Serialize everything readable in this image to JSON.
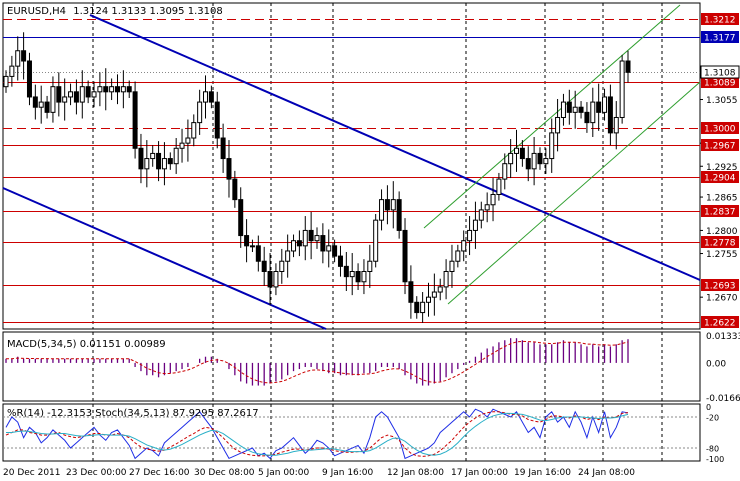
{
  "main": {
    "symbol": "EURUSD,H4",
    "ohlc": "1.3124 1.3133 1.3095 1.3108",
    "colors": {
      "resistance": "#cc0000",
      "channel_blue": "#0000b4",
      "channel_green": "#2e9e2e",
      "candle": "#000000",
      "grid": "#000000"
    }
  },
  "macd": {
    "label": "MACD(5,34,5) 0.01151 0.00989"
  },
  "osc": {
    "label": "%R(14) -12.3153  Stoch(34,5,13) 87.9295 87.2617"
  },
  "chart_data": [
    {
      "type": "candlestick",
      "title": "EURUSD,H4 1.3124 1.3133 1.3095 1.3108",
      "x_ticks": [
        "20 Dec 2011",
        "23 Dec 00:00",
        "27 Dec 16:00",
        "30 Dec 08:00",
        "5 Jan 00:00",
        "9 Jan 16:00",
        "12 Jan 08:00",
        "17 Jan 00:00",
        "19 Jan 16:00",
        "24 Jan 08:00"
      ],
      "y_ticks": [
        "1.3055",
        "1.2970",
        "1.2925",
        "1.2865",
        "1.2800",
        "1.2755",
        "1.2670"
      ],
      "ylim": [
        1.2608,
        1.3243
      ],
      "hlines": [
        {
          "label": "1.3212",
          "value": 1.3212,
          "color": "#cc0000",
          "style": "dashed"
        },
        {
          "label": "1.3177",
          "value": 1.3177,
          "color": "#0000b4",
          "style": "solid"
        },
        {
          "label": "1.3089",
          "value": 1.3089,
          "color": "#cc0000",
          "style": "solid"
        },
        {
          "label": "1.3000",
          "value": 1.3,
          "color": "#cc0000",
          "style": "dashed"
        },
        {
          "label": "1.2967",
          "value": 1.2967,
          "color": "#cc0000",
          "style": "solid"
        },
        {
          "label": "1.2904",
          "value": 1.2904,
          "color": "#cc0000",
          "style": "solid"
        },
        {
          "label": "1.2837",
          "value": 1.2837,
          "color": "#cc0000",
          "style": "solid"
        },
        {
          "label": "1.2778",
          "value": 1.2778,
          "color": "#cc0000",
          "style": "solid"
        },
        {
          "label": "1.2693",
          "value": 1.2693,
          "color": "#cc0000",
          "style": "solid"
        },
        {
          "label": "1.2622",
          "value": 1.2622,
          "color": "#cc0000",
          "style": "solid"
        }
      ],
      "current_price": {
        "label": "1.3108",
        "value": 1.3108
      },
      "closes": [
        1.31,
        1.312,
        1.315,
        1.313,
        1.306,
        1.304,
        1.305,
        1.303,
        1.308,
        1.305,
        1.306,
        1.307,
        1.305,
        1.308,
        1.306,
        1.307,
        1.308,
        1.307,
        1.308,
        1.307,
        1.308,
        1.307,
        1.296,
        1.292,
        1.294,
        1.295,
        1.292,
        1.294,
        1.293,
        1.296,
        1.297,
        1.298,
        1.301,
        1.305,
        1.307,
        1.305,
        1.298,
        1.294,
        1.29,
        1.286,
        1.279,
        1.277,
        1.277,
        1.274,
        1.272,
        1.269,
        1.272,
        1.274,
        1.276,
        1.278,
        1.277,
        1.28,
        1.278,
        1.279,
        1.276,
        1.277,
        1.275,
        1.273,
        1.271,
        1.272,
        1.27,
        1.272,
        1.274,
        1.282,
        1.286,
        1.284,
        1.286,
        1.28,
        1.27,
        1.266,
        1.264,
        1.266,
        1.267,
        1.268,
        1.269,
        1.272,
        1.274,
        1.276,
        1.278,
        1.28,
        1.282,
        1.284,
        1.285,
        1.287,
        1.29,
        1.293,
        1.295,
        1.296,
        1.294,
        1.292,
        1.295,
        1.293,
        1.294,
        1.299,
        1.302,
        1.305,
        1.303,
        1.304,
        1.303,
        1.301,
        1.305,
        1.303,
        1.306,
        1.299,
        1.302,
        1.313,
        1.3108
      ]
    },
    {
      "type": "bar",
      "title": "MACD(5,34,5) 0.01151 0.00989",
      "y_ticks": [
        "0.01333",
        "0.00",
        "-0.01669"
      ],
      "ylim": [
        -0.0185,
        0.015
      ],
      "series": [
        {
          "name": "MACD",
          "kind": "histogram",
          "values": [
            0.002,
            0.002,
            0.003,
            0.002,
            0.002,
            0.002,
            0.002,
            0.002,
            0.002,
            0.002,
            0.002,
            0.002,
            0.002,
            0.002,
            0.002,
            0.002,
            0.002,
            0.002,
            0.002,
            0.002,
            0.002,
            0.002,
            -0.002,
            -0.004,
            -0.006,
            -0.006,
            -0.007,
            -0.006,
            -0.005,
            -0.004,
            -0.003,
            -0.002,
            0.0,
            0.002,
            0.003,
            0.003,
            0.002,
            0.0,
            -0.003,
            -0.006,
            -0.009,
            -0.01,
            -0.011,
            -0.011,
            -0.011,
            -0.01,
            -0.009,
            -0.008,
            -0.006,
            -0.004,
            -0.003,
            -0.002,
            -0.002,
            -0.003,
            -0.004,
            -0.005,
            -0.005,
            -0.006,
            -0.006,
            -0.006,
            -0.006,
            -0.005,
            -0.005,
            -0.004,
            -0.002,
            -0.002,
            -0.002,
            -0.003,
            -0.006,
            -0.008,
            -0.01,
            -0.011,
            -0.011,
            -0.01,
            -0.009,
            -0.007,
            -0.005,
            -0.003,
            -0.001,
            0.001,
            0.003,
            0.005,
            0.007,
            0.008,
            0.01,
            0.011,
            0.012,
            0.012,
            0.011,
            0.01,
            0.01,
            0.009,
            0.009,
            0.009,
            0.01,
            0.011,
            0.01,
            0.01,
            0.009,
            0.008,
            0.009,
            0.008,
            0.009,
            0.008,
            0.009,
            0.011,
            0.0115
          ]
        },
        {
          "name": "Signal",
          "kind": "dashed-line"
        }
      ]
    },
    {
      "type": "line",
      "title": "%R(14) -12.3153  Stoch(34,5,13) 87.9295 87.2617",
      "y_ticks": [
        "0",
        "-20",
        "-80",
        "-100"
      ],
      "ylim": [
        -105,
        5
      ],
      "series": [
        {
          "name": "%R(14)",
          "values": [
            -40,
            -20,
            -30,
            -60,
            -40,
            -50,
            -70,
            -60,
            -45,
            -55,
            -65,
            -80,
            -70,
            -60,
            -50,
            -40,
            -55,
            -65,
            -50,
            -45,
            -60,
            -75,
            -100,
            -90,
            -80,
            -85,
            -95,
            -70,
            -60,
            -50,
            -40,
            -30,
            -20,
            -10,
            -25,
            -40,
            -60,
            -80,
            -100,
            -95,
            -90,
            -85,
            -80,
            -95,
            -90,
            -100,
            -85,
            -80,
            -70,
            -60,
            -75,
            -90,
            -80,
            -65,
            -70,
            -80,
            -95,
            -90,
            -85,
            -80,
            -75,
            -90,
            -60,
            -20,
            -10,
            -20,
            -40,
            -60,
            -100,
            -95,
            -90,
            -85,
            -80,
            -70,
            -50,
            -40,
            -30,
            -20,
            -10,
            -20,
            -5,
            -10,
            -20,
            -5,
            -10,
            -15,
            -20,
            -10,
            -30,
            -50,
            -40,
            -60,
            -20,
            -10,
            -30,
            -20,
            -40,
            -10,
            -30,
            -60,
            -20,
            -50,
            -10,
            -60,
            -40,
            -10,
            -12
          ]
        },
        {
          "name": "Stoch(34,5,13) main",
          "kind": "dashed",
          "values": [
            -55,
            -50,
            -45,
            -45,
            -50,
            -52,
            -55,
            -55,
            -52,
            -50,
            -55,
            -58,
            -60,
            -58,
            -55,
            -52,
            -52,
            -55,
            -55,
            -52,
            -55,
            -60,
            -70,
            -78,
            -82,
            -84,
            -86,
            -84,
            -78,
            -72,
            -65,
            -58,
            -52,
            -45,
            -40,
            -42,
            -50,
            -60,
            -72,
            -82,
            -88,
            -92,
            -94,
            -95,
            -95,
            -94,
            -92,
            -88,
            -85,
            -82,
            -82,
            -84,
            -82,
            -80,
            -80,
            -82,
            -85,
            -87,
            -88,
            -88,
            -87,
            -86,
            -80,
            -70,
            -60,
            -55,
            -58,
            -65,
            -80,
            -90,
            -95,
            -96,
            -95,
            -92,
            -85,
            -75,
            -65,
            -52,
            -40,
            -30,
            -22,
            -15,
            -12,
            -10,
            -10,
            -12,
            -15,
            -15,
            -18,
            -25,
            -28,
            -30,
            -25,
            -18,
            -18,
            -20,
            -22,
            -18,
            -20,
            -25,
            -22,
            -25,
            -20,
            -22,
            -20,
            -13,
            -12
          ]
        },
        {
          "name": "Stoch(34,5,13) signal",
          "values": [
            -50,
            -50,
            -48,
            -47,
            -48,
            -50,
            -52,
            -53,
            -53,
            -52,
            -52,
            -54,
            -56,
            -57,
            -56,
            -55,
            -54,
            -54,
            -55,
            -55,
            -55,
            -57,
            -62,
            -68,
            -74,
            -78,
            -82,
            -84,
            -82,
            -78,
            -73,
            -67,
            -61,
            -55,
            -50,
            -46,
            -47,
            -52,
            -60,
            -68,
            -76,
            -83,
            -88,
            -91,
            -93,
            -94,
            -94,
            -92,
            -90,
            -87,
            -85,
            -84,
            -84,
            -83,
            -82,
            -81,
            -82,
            -84,
            -86,
            -87,
            -87,
            -87,
            -85,
            -80,
            -73,
            -66,
            -61,
            -61,
            -67,
            -76,
            -84,
            -90,
            -93,
            -94,
            -92,
            -87,
            -80,
            -70,
            -58,
            -47,
            -38,
            -30,
            -23,
            -18,
            -15,
            -13,
            -13,
            -14,
            -15,
            -18,
            -22,
            -26,
            -27,
            -25,
            -22,
            -20,
            -20,
            -20,
            -20,
            -21,
            -22,
            -23,
            -22,
            -22,
            -21,
            -18,
            -15
          ]
        }
      ]
    }
  ]
}
